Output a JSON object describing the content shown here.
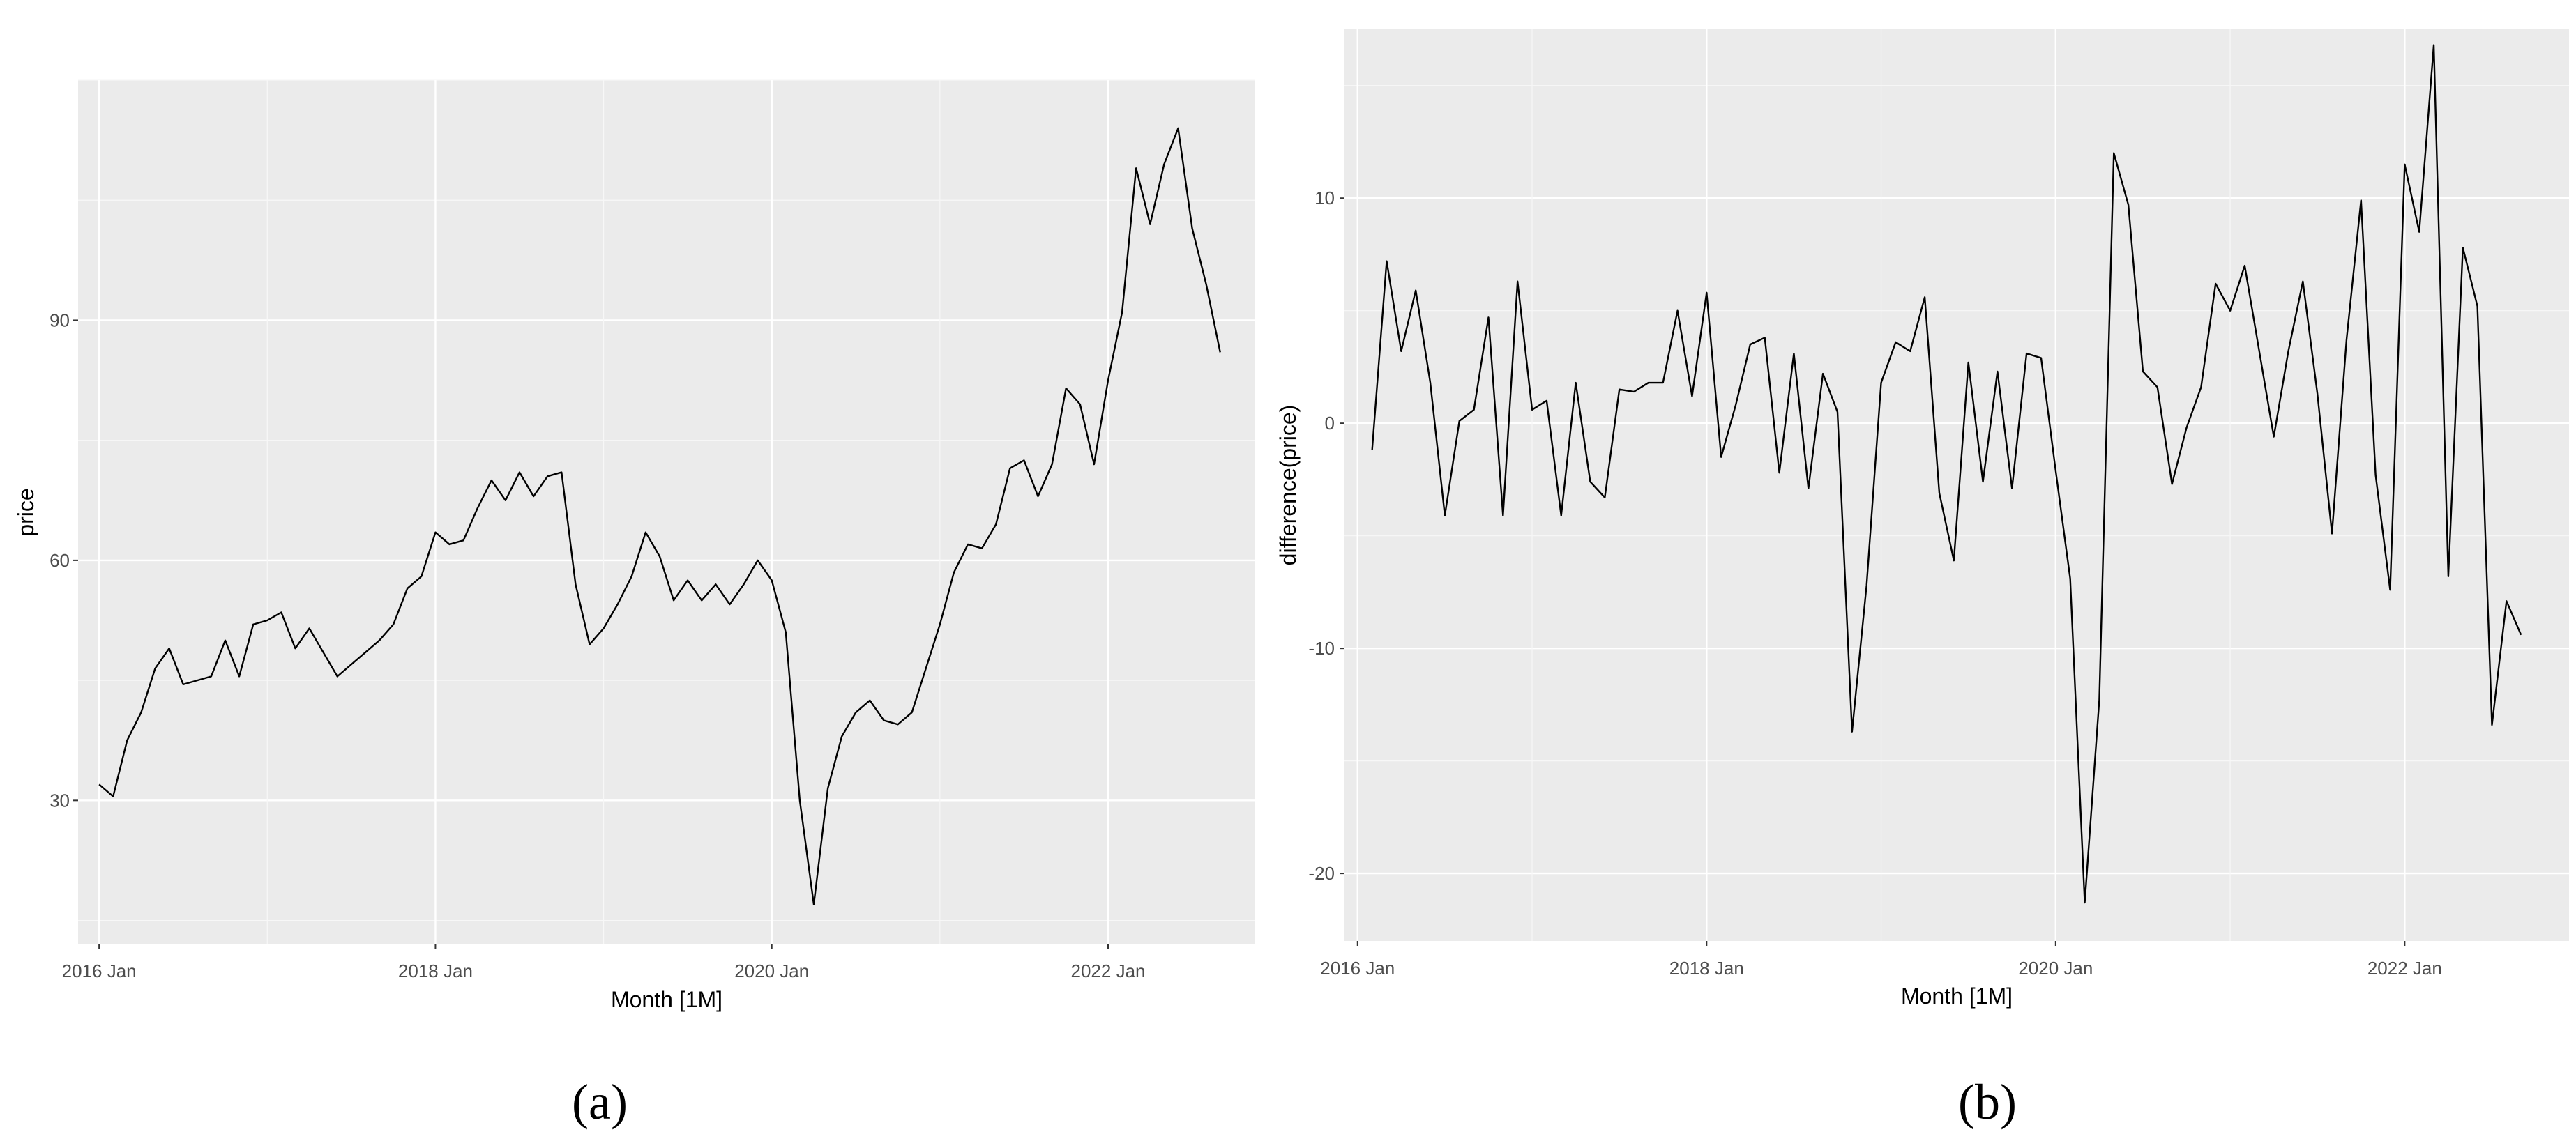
{
  "chart_data": [
    {
      "type": "line",
      "title": "",
      "xlabel": "Month [1M]",
      "ylabel": "price",
      "x_ticks": [
        "2016 Jan",
        "2018 Jan",
        "2020 Jan",
        "2022 Jan"
      ],
      "y_ticks": [
        "30",
        "60",
        "90"
      ],
      "y_tick_values": [
        30,
        60,
        90
      ],
      "ylim": [
        12,
        120
      ],
      "x_start": "2016-01",
      "x_end": "2022-09",
      "grid": true,
      "legend": "none",
      "caption": "(a)",
      "series": [
        {
          "values": [
            32,
            30.5,
            37.5,
            41,
            46.5,
            49,
            44.5,
            45,
            45.5,
            50,
            45.5,
            52,
            52.5,
            53.5,
            49,
            51.5,
            48.5,
            45.5,
            47,
            48.5,
            50,
            52,
            56.5,
            58,
            63.5,
            62,
            62.5,
            66.5,
            70,
            67.5,
            71,
            68,
            70.5,
            71,
            57,
            49.5,
            51.5,
            54.5,
            58,
            63.5,
            60.5,
            55,
            57.5,
            55,
            57,
            54.5,
            57,
            60,
            57.5,
            51,
            30,
            17,
            31.5,
            38,
            41,
            42.5,
            40,
            39.5,
            41,
            46.5,
            52,
            58.5,
            62,
            61.5,
            64.5,
            71.5,
            72.5,
            68,
            72,
            81.5,
            79.5,
            72,
            82.5,
            91,
            109,
            102,
            109.5,
            114,
            101.5,
            94.5,
            86
          ]
        }
      ]
    },
    {
      "type": "line",
      "title": "",
      "xlabel": "Month [1M]",
      "ylabel": "difference(price)",
      "x_ticks": [
        "2016 Jan",
        "2018 Jan",
        "2020 Jan",
        "2022 Jan"
      ],
      "y_ticks": [
        "-20",
        "-10",
        "0",
        "10"
      ],
      "y_tick_values": [
        -20,
        -10,
        0,
        10
      ],
      "ylim": [
        -23,
        17.5
      ],
      "x_start": "2016-02",
      "x_end": "2022-09",
      "grid": true,
      "legend": "none",
      "caption": "(b)",
      "series": [
        {
          "values": [
            -1.2,
            7.2,
            3.2,
            5.9,
            1.8,
            -4.1,
            0.1,
            0.6,
            4.7,
            -4.1,
            6.3,
            0.6,
            1,
            -4.1,
            1.8,
            -2.6,
            -3.3,
            1.5,
            1.4,
            1.8,
            1.8,
            5,
            1.2,
            5.8,
            -1.5,
            0.8,
            3.5,
            3.8,
            -2.2,
            3.1,
            -2.9,
            2.2,
            0.5,
            -13.7,
            -7.2,
            1.8,
            3.6,
            3.2,
            5.6,
            -3.1,
            -6.1,
            2.7,
            -2.6,
            2.3,
            -2.9,
            3.1,
            2.9,
            -2.1,
            -6.9,
            -21.3,
            -12.3,
            12,
            9.7,
            2.3,
            1.6,
            -2.7,
            -0.2,
            1.6,
            6.2,
            5,
            7,
            3.2,
            -0.6,
            3.2,
            6.3,
            1.3,
            -4.9,
            3.7,
            9.9,
            -2.3,
            -7.4,
            11.5,
            8.5,
            16.8,
            -6.8,
            7.8,
            5.2,
            -13.4,
            -7.9,
            -9.4
          ]
        }
      ]
    }
  ]
}
